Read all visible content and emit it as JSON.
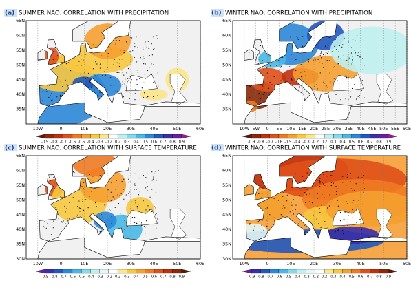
{
  "panels": [
    {
      "label": "(a)",
      "title": "SUMMER NAO: CORRELATION WITH PRECIPITATION",
      "colorbar": "precip",
      "lat_labels": [
        "65N",
        "60N",
        "55N",
        "50N",
        "45N",
        "40N",
        "35N"
      ],
      "lon_labels": [
        "10W",
        "0",
        "10E",
        "20E",
        "30E",
        "40E",
        "50E",
        "60E"
      ],
      "colorbar_labels": [
        "-0.9",
        "-0.8",
        "-0.7",
        "-0.6",
        "-0.5",
        "-0.4",
        "-0.3",
        "-0.2",
        "0.2",
        "0.3",
        "0.4",
        "0.5",
        "0.6",
        "0.7",
        "0.8",
        "0.9"
      ]
    },
    {
      "label": "(b)",
      "title": "WINTER NAO: CORRELATION WITH PRECIPITATION",
      "colorbar": "precip",
      "lat_labels": [
        "65N",
        "60N",
        "55N",
        "50N",
        "45N",
        "40N",
        "35N"
      ],
      "lon_labels": [
        "10W",
        "5W",
        "0",
        "5E",
        "10E",
        "15E",
        "20E",
        "25E",
        "30E",
        "35E",
        "40E",
        "45E",
        "50E",
        "55E",
        "60E"
      ],
      "colorbar_labels": [
        "-0.9",
        "-0.8",
        "-0.7",
        "-0.6",
        "-0.5",
        "-0.4",
        "-0.3",
        "-0.2",
        "0.2",
        "0.3",
        "0.4",
        "0.5",
        "0.6",
        "0.7",
        "0.8",
        "0.9"
      ]
    },
    {
      "label": "(c)",
      "title": "SUMMER NAO: CORRELATION WITH SURFACE TEMPERATURE",
      "colorbar": "temp",
      "lat_labels": [
        "65N",
        "60N",
        "55N",
        "50N",
        "45N",
        "40N",
        "35N",
        "30N"
      ],
      "lon_labels": [
        "10W",
        "0",
        "10E",
        "20E",
        "30E",
        "40E",
        "50E",
        "60E"
      ],
      "colorbar_labels": [
        "-0.9",
        "-0.8",
        "-0.7",
        "-0.6",
        "-0.5",
        "-0.4",
        "-0.3",
        "-0.2",
        "0.2",
        "0.3",
        "0.4",
        "0.5",
        "0.6",
        "0.7",
        "0.8",
        "0.9"
      ]
    },
    {
      "label": "(d)",
      "title": "WINTER NAO: CORRELATION WITH SURFACE TEMPERATURE",
      "colorbar": "temp",
      "lat_labels": [
        "65N",
        "60N",
        "55N",
        "50N",
        "45N",
        "40N",
        "35N",
        "30N"
      ],
      "lon_labels": [
        "10W",
        "0",
        "10E",
        "20E",
        "30E",
        "40E",
        "50E",
        "60E"
      ],
      "colorbar_labels": [
        "-0.9",
        "-0.8",
        "-0.7",
        "-0.6",
        "-0.5",
        "-0.4",
        "-0.3",
        "-0.2",
        "0.2",
        "0.3",
        "0.4",
        "0.5",
        "0.6",
        "0.7",
        "0.8",
        "0.9"
      ]
    }
  ],
  "colorbars": {
    "precip": [
      "#5a1a08",
      "#8a2a0a",
      "#c0300f",
      "#e0501a",
      "#ef7a22",
      "#f5a030",
      "#f7c840",
      "#fbe68a",
      "#ffffff",
      "#bff0f0",
      "#80dcec",
      "#4ab8e6",
      "#2c88d8",
      "#2058c0",
      "#3a2fa8",
      "#6a1ea0",
      "#9a1a98"
    ],
    "temp": [
      "#6a1ea0",
      "#3a2fa8",
      "#2058c0",
      "#2c88d8",
      "#4ab8e6",
      "#80dcec",
      "#bff0f0",
      "#e4f6f6",
      "#ffffff",
      "#fbe68a",
      "#f7c840",
      "#f5a030",
      "#ef7a22",
      "#e0501a",
      "#c0300f",
      "#8a2a0a",
      "#5a1a08"
    ]
  }
}
